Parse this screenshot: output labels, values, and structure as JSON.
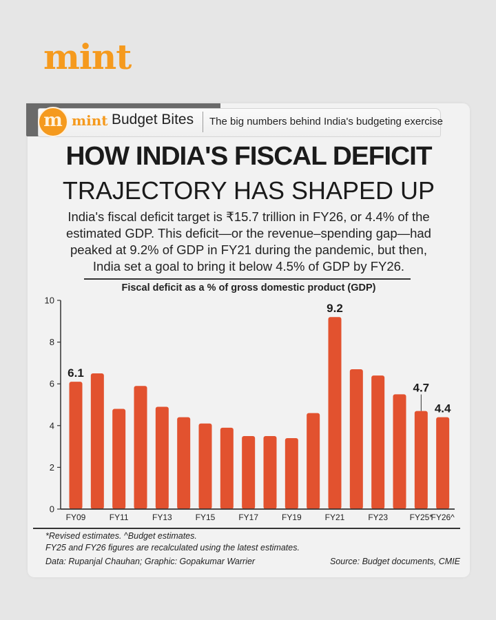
{
  "brand": {
    "logo": "mint"
  },
  "header": {
    "badge_letter": "m",
    "series_brand": "mint",
    "series_name": "Budget Bites",
    "tagline": "The big numbers behind India's budgeting exercise"
  },
  "headline": {
    "line1": "HOW INDIA'S FISCAL DEFICIT",
    "line2": "TRAJECTORY HAS SHAPED UP"
  },
  "intro": "India's fiscal deficit target is ₹15.7 trillion in FY26, or 4.4% of the estimated GDP. This deficit—or the revenue–spending gap—had peaked at 9.2% of GDP in FY21 during the pandemic, but then, India set a goal to bring it below 4.5% of GDP by FY26.",
  "colors": {
    "bar": "#e2522f",
    "brand": "#f59a1e",
    "text": "#1b1b1b"
  },
  "chart_data": {
    "type": "bar",
    "title": "Fiscal deficit as a % of gross domestic product (GDP)",
    "xlabel": "",
    "ylabel": "",
    "ylim": [
      0,
      10
    ],
    "yticks": [
      0,
      2,
      4,
      6,
      8,
      10
    ],
    "grid": false,
    "categories": [
      "FY09",
      "FY10",
      "FY11",
      "FY12",
      "FY13",
      "FY14",
      "FY15",
      "FY16",
      "FY17",
      "FY18",
      "FY19",
      "FY20",
      "FY21",
      "FY22",
      "FY23",
      "FY24",
      "FY25*",
      "FY26^"
    ],
    "tick_labels": [
      "FY09",
      "",
      "FY11",
      "",
      "FY13",
      "",
      "FY15",
      "",
      "FY17",
      "",
      "FY19",
      "",
      "FY21",
      "",
      "FY23",
      "",
      "FY25*",
      "FY26^"
    ],
    "values": [
      6.1,
      6.5,
      4.8,
      5.9,
      4.9,
      4.4,
      4.1,
      3.9,
      3.5,
      3.5,
      3.4,
      4.6,
      9.2,
      6.7,
      6.4,
      5.5,
      4.7,
      4.4
    ],
    "data_labels": [
      {
        "category": "FY09",
        "text": "6.1"
      },
      {
        "category": "FY21",
        "text": "9.2"
      },
      {
        "category": "FY25*",
        "text": "4.7",
        "leader_line": true
      },
      {
        "category": "FY26^",
        "text": "4.4"
      }
    ]
  },
  "footnotes": {
    "line1": "*Revised estimates. ^Budget estimates.",
    "line2": "FY25 and FY26 figures are recalculated using the latest estimates.",
    "credit": "Data: Rupanjal Chauhan; Graphic: Gopakumar Warrier",
    "source": "Source: Budget documents, CMIE"
  }
}
